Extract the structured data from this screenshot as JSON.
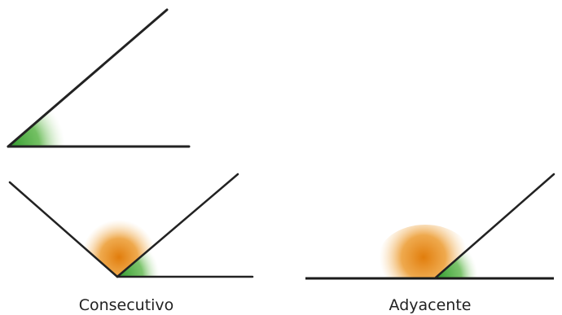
{
  "colors": {
    "line": "#222222",
    "angle_fill_green": "#3ea83a",
    "angle_fill_orange": "#e8901c",
    "background": "#ffffff"
  },
  "diagrams": [
    {
      "id": "single-angle",
      "caption": ""
    },
    {
      "id": "consecutive-angles",
      "caption": "Consecutivo"
    },
    {
      "id": "adjacent-angles",
      "caption": "Adyacente"
    }
  ]
}
